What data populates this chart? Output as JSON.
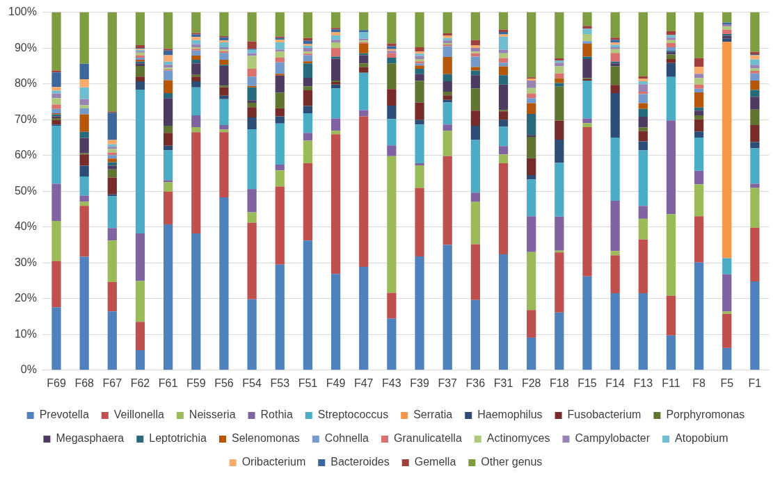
{
  "chart_data": {
    "type": "bar",
    "stacked": true,
    "grid": "y",
    "legend": "bottom",
    "categories": [
      "F69",
      "F68",
      "F67",
      "F62",
      "F61",
      "F59",
      "F56",
      "F54",
      "F53",
      "F51",
      "F49",
      "F47",
      "F43",
      "F39",
      "F37",
      "F36",
      "F31",
      "F28",
      "F18",
      "F15",
      "F14",
      "F13",
      "F11",
      "F8",
      "F5",
      "F1"
    ],
    "ylim": [
      0,
      100
    ],
    "yticks": [
      {
        "value": 0,
        "label": "0%"
      },
      {
        "value": 10,
        "label": "10%"
      },
      {
        "value": 20,
        "label": "20%"
      },
      {
        "value": 30,
        "label": "30%"
      },
      {
        "value": 40,
        "label": "40%"
      },
      {
        "value": 50,
        "label": "50%"
      },
      {
        "value": 60,
        "label": "60%"
      },
      {
        "value": 70,
        "label": "70%"
      },
      {
        "value": 80,
        "label": "80%"
      },
      {
        "value": 90,
        "label": "90%"
      },
      {
        "value": 100,
        "label": "100%"
      }
    ],
    "series": [
      {
        "name": "Prevotella",
        "color": "#4f81bd",
        "values": [
          17.6,
          31.7,
          16.4,
          5.6,
          40.7,
          38.2,
          48.3,
          19.8,
          29.5,
          36.2,
          26.9,
          28.9,
          14.4,
          31.8,
          35.0,
          19.6,
          32.4,
          9.1,
          16.1,
          26.2,
          21.5,
          21.5,
          9.7,
          30.1,
          6.2,
          24.8
        ]
      },
      {
        "name": "Veillonella",
        "color": "#c0504d",
        "values": [
          12.9,
          14.2,
          8.2,
          7.9,
          9.2,
          28.3,
          18.2,
          21.4,
          21.8,
          21.6,
          39.0,
          42.0,
          7.2,
          19.1,
          24.8,
          15.6,
          25.4,
          7.7,
          16.8,
          41.7,
          10.6,
          15.0,
          11.1,
          12.9,
          9.5,
          15.0
        ]
      },
      {
        "name": "Neisseria",
        "color": "#9bbb59",
        "values": [
          11.2,
          1.2,
          11.6,
          11.4,
          2.6,
          1.4,
          0.7,
          2.9,
          4.5,
          6.3,
          1.0,
          0,
          38.2,
          6.3,
          7.1,
          11.8,
          2.5,
          16.2,
          0.5,
          1.1,
          1.2,
          5.8,
          22.8,
          8.9,
          0.7,
          11.1
        ]
      },
      {
        "name": "Rothia",
        "color": "#8064a2",
        "values": [
          10.4,
          1.7,
          3.5,
          13.3,
          0.6,
          3.3,
          1.3,
          6.5,
          1.6,
          2.2,
          3.4,
          1.7,
          3.0,
          0.6,
          1.7,
          2.6,
          2.3,
          10.0,
          9.5,
          1.3,
          14.0,
          3.6,
          26.2,
          3.8,
          10.4,
          1.2
        ]
      },
      {
        "name": "Streptococcus",
        "color": "#4bacc6",
        "values": [
          16.2,
          5.3,
          8.9,
          40.2,
          8.3,
          7.8,
          7.2,
          16.7,
          11.5,
          5.5,
          8.4,
          10.5,
          7.4,
          10.8,
          6.2,
          14.7,
          5.4,
          10.3,
          15.0,
          10.6,
          17.7,
          15.5,
          12.1,
          9.3,
          4.5,
          9.9
        ]
      },
      {
        "name": "Serratia",
        "color": "#f79646",
        "values": [
          0,
          0,
          0,
          0,
          0,
          0,
          0,
          0,
          0,
          0,
          0,
          0,
          0,
          0,
          0,
          0,
          0,
          0,
          0,
          0,
          0,
          0,
          0,
          0,
          60.4,
          0
        ]
      },
      {
        "name": "Haemophilus",
        "color": "#2c4d75",
        "values": [
          0.3,
          3.0,
          0.5,
          2.3,
          1.3,
          1.7,
          1.0,
          3.3,
          2.0,
          2.0,
          1.1,
          0,
          3.7,
          1.3,
          0.7,
          4.0,
          2.0,
          1.2,
          6.5,
          0,
          12.4,
          2.5,
          3.9,
          1.7,
          0.9,
          1.7
        ]
      },
      {
        "name": "Fusobacterium",
        "color": "#772c2a",
        "values": [
          1.3,
          3.2,
          4.7,
          1.3,
          3.6,
          1.3,
          2.3,
          2.9,
          2.3,
          4.4,
          0.7,
          1.6,
          4.6,
          4.9,
          1.3,
          4.2,
          2.3,
          4.7,
          5.3,
          0.4,
          2.3,
          2.9,
          1.1,
          3.4,
          0,
          4.8
        ]
      },
      {
        "name": "Porphyromonas",
        "color": "#5f7530",
        "values": [
          0.5,
          0.3,
          2.3,
          3.0,
          2.0,
          0.5,
          0.5,
          1.2,
          4.3,
          1.1,
          0.4,
          1.0,
          7.2,
          6.0,
          1.0,
          6.2,
          0.4,
          6.0,
          9.5,
          0.3,
          5.2,
          1.0,
          1.3,
          1.1,
          0,
          4.3
        ]
      },
      {
        "name": "Megasphaera",
        "color": "#4d3b62",
        "values": [
          0.5,
          4.3,
          1.0,
          0.7,
          7.7,
          3.2,
          5.5,
          0.7,
          4.8,
          2.4,
          6.1,
          2.3,
          0,
          1.9,
          2.9,
          3.7,
          7.1,
          0.5,
          0,
          5.3,
          0.8,
          3.0,
          0.7,
          1.3,
          0.8,
          3.6
        ]
      },
      {
        "name": "Leptotrichia",
        "color": "#276a7c",
        "values": [
          0.6,
          1.7,
          1.0,
          0.5,
          1.4,
          1.0,
          0.3,
          3.6,
          0,
          4.0,
          0.6,
          0.5,
          1.6,
          1.5,
          2.0,
          1.3,
          2.6,
          5.9,
          1.0,
          0.7,
          0.5,
          2.2,
          0.4,
          0.9,
          0.5,
          1.9
        ]
      },
      {
        "name": "Selenomonas",
        "color": "#b65708",
        "values": [
          0.3,
          4.9,
          1.0,
          0.5,
          3.6,
          1.2,
          1.4,
          0.4,
          0.5,
          0.6,
          0,
          2.7,
          0,
          0.9,
          4.8,
          1.0,
          2.5,
          3.0,
          1.4,
          3.6,
          0,
          1.6,
          0,
          4.2,
          0,
          2.6
        ]
      },
      {
        "name": "Cohnella",
        "color": "#729aca",
        "values": [
          1.2,
          1.7,
          1.0,
          0.6,
          2.7,
          1.4,
          1.9,
          2.6,
          3.2,
          1.7,
          0,
          0,
          0,
          0.6,
          3.0,
          2.9,
          1.0,
          1.4,
          0,
          0.7,
          0,
          2.5,
          0.9,
          1.0,
          0,
          2.0
        ]
      },
      {
        "name": "Granulicatella",
        "color": "#d9726f",
        "values": [
          1.2,
          0,
          0.7,
          0.7,
          0.3,
          0.5,
          0.5,
          2.2,
          1.3,
          0.4,
          2.4,
          0.4,
          1.2,
          0.6,
          0.5,
          0.9,
          1.3,
          1.3,
          1.3,
          0,
          2.4,
          0.7,
          1.2,
          1.2,
          1.2,
          0.7
        ]
      },
      {
        "name": "Actinomyces",
        "color": "#afc97a",
        "values": [
          1.8,
          0.8,
          1.0,
          0.7,
          0.5,
          0.4,
          0.5,
          3.6,
          1.7,
          0.6,
          1.6,
          0.5,
          0,
          0.6,
          0.4,
          0.5,
          1.3,
          1.5,
          2.0,
          2.0,
          1.1,
          0,
          0.8,
          1.8,
          0.9,
          0.7
        ]
      },
      {
        "name": "Campylobacter",
        "color": "#9983b5",
        "values": [
          1.3,
          1.7,
          0.6,
          0.4,
          0.8,
          0.9,
          0.6,
          0.7,
          0.6,
          1.0,
          0.7,
          0.5,
          0.7,
          0.9,
          0.7,
          1.0,
          1.0,
          2.1,
          1.0,
          0,
          0.5,
          2.1,
          0.7,
          1.2,
          0.6,
          1.0
        ]
      },
      {
        "name": "Atopobium",
        "color": "#6fbdd1",
        "values": [
          0.8,
          3.3,
          0.7,
          0.4,
          0.9,
          1.1,
          1.4,
          1.0,
          2.0,
          0.6,
          1.2,
          1.8,
          0,
          0.6,
          0.7,
          0,
          3.7,
          0,
          0.6,
          1.5,
          0.7,
          0.8,
          0.7,
          0,
          0,
          1.5
        ]
      },
      {
        "name": "Oribacterium",
        "color": "#f9ab6b",
        "values": [
          1.0,
          2.3,
          1.2,
          0.3,
          1.8,
          0.9,
          0.5,
          0,
          0.7,
          0.5,
          0.9,
          0,
          0.5,
          0.6,
          0.7,
          0.7,
          0.6,
          0.6,
          0,
          0,
          0.7,
          0.7,
          0,
          2.0,
          0,
          1.2
        ]
      },
      {
        "name": "Bacteroides",
        "color": "#3a679c",
        "values": [
          4.1,
          4.3,
          7.6,
          0.2,
          1.3,
          0.7,
          0.9,
          0.3,
          0.5,
          0.9,
          0.8,
          0.6,
          0.8,
          0,
          0,
          0,
          0.7,
          0,
          0,
          0,
          0.7,
          0,
          0,
          0,
          0.5,
          0.3
        ]
      },
      {
        "name": "Gemella",
        "color": "#a0403c",
        "values": [
          0.5,
          0,
          0.3,
          0.8,
          0.5,
          0.4,
          0.3,
          2.0,
          0.4,
          0.8,
          0.4,
          0,
          0.8,
          1.2,
          0.6,
          1.5,
          0.6,
          0.3,
          0.6,
          0.8,
          0.6,
          0.7,
          1.1,
          2.4,
          0,
          0.6
        ]
      },
      {
        "name": "Other genus",
        "color": "#7e9c40",
        "values": [
          16.3,
          14.4,
          27.8,
          9.2,
          10.2,
          5.8,
          6.7,
          8.2,
          6.8,
          7.2,
          4.4,
          5.0,
          8.7,
          9.8,
          5.9,
          7.8,
          4.9,
          18.2,
          12.9,
          3.8,
          7.1,
          17.9,
          5.3,
          12.8,
          2.9,
          11.1
        ]
      }
    ]
  }
}
